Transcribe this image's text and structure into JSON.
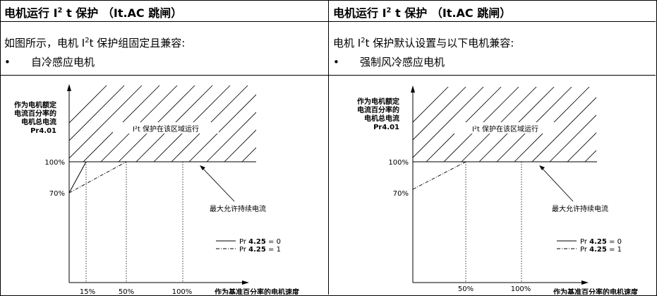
{
  "panels": [
    {
      "title_prefix": "电机运行 I",
      "title_sup": "2",
      "title_suffix": " t 保护 （It.AC 跳闸）",
      "intro_prefix": "如图所示，电机 I",
      "intro_sup": "2",
      "intro_suffix": "t 保护组固定且兼容:",
      "bullet_symbol": "•",
      "bullet_text": "自冷感应电机",
      "chart": {
        "ylabel": [
          "作为电机额定",
          "电流百分率的",
          "电机总电流",
          "Pr4.01"
        ],
        "xlabel": "作为基准百分率的电机速度",
        "region_label": "I²t 保护在该区域运行",
        "max_label": "最大允许持续电流",
        "y_ticks": [
          "100%",
          "70%"
        ],
        "x_ticks": [
          "15%",
          "50%",
          "100%"
        ],
        "legend": [
          {
            "prefix": "Pr ",
            "param": "4.25",
            "suffix": " = 0",
            "style": "solid"
          },
          {
            "prefix": "Pr ",
            "param": "4.25",
            "suffix": " = 1",
            "style": "dashdot"
          }
        ]
      }
    },
    {
      "title_prefix": "电机运行 I",
      "title_sup": "2",
      "title_suffix": " t 保护 （It.AC 跳闸）",
      "intro_prefix": "电机 I",
      "intro_sup": "2",
      "intro_suffix": "t 保护默认设置与以下电机兼容:",
      "bullet_symbol": "•",
      "bullet_text": "强制风冷感应电机",
      "chart": {
        "ylabel": [
          "作为电机额定",
          "电流百分率的",
          "电机总电流",
          "Pr4.01"
        ],
        "xlabel": "作为基准百分率的电机速度",
        "region_label": "I²t 保护在该区域运行",
        "max_label": "最大允许持续电流",
        "y_ticks": [
          "100%",
          "70%"
        ],
        "x_ticks": [
          "50%",
          "100%"
        ],
        "legend": [
          {
            "prefix": "Pr ",
            "param": "4.25",
            "suffix": " = 0",
            "style": "solid"
          },
          {
            "prefix": "Pr ",
            "param": "4.25",
            "suffix": " = 1",
            "style": "dashdot"
          }
        ]
      }
    }
  ]
}
